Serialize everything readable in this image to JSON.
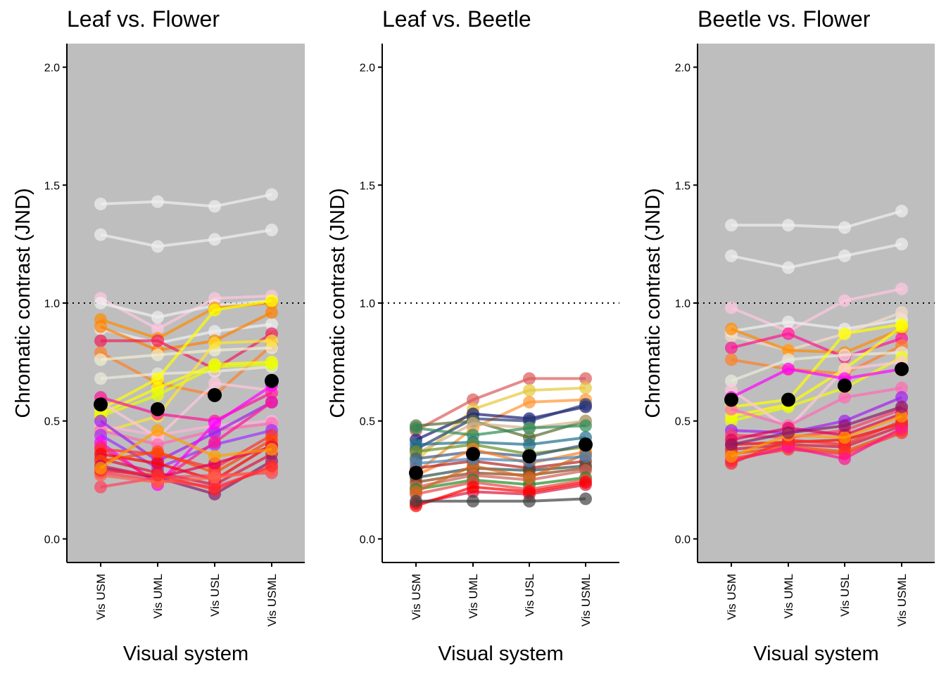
{
  "chart_data": {
    "type": "line",
    "panels": [
      {
        "title": "Leaf vs. Flower",
        "xlabel": "Visual system",
        "ylabel": "Chromatic contrast (JND)",
        "background": "#bebebe",
        "categories": [
          "Vis USM",
          "Vis UML",
          "Vis USL",
          "Vis USML"
        ],
        "ylim": [
          -0.1,
          2.1
        ],
        "yticks": [
          "0.0",
          "0.5",
          "1.0",
          "1.5",
          "2.0"
        ],
        "reference_line": 1.0,
        "mean": [
          0.57,
          0.55,
          0.61,
          0.67
        ],
        "series": [
          {
            "color": "#f0f0f0",
            "values": [
              1.42,
              1.43,
              1.41,
              1.46
            ]
          },
          {
            "color": "#f0f0f0",
            "values": [
              1.29,
              1.24,
              1.27,
              1.31
            ]
          },
          {
            "color": "#ffc8e0",
            "values": [
              1.02,
              0.89,
              1.02,
              1.03
            ]
          },
          {
            "color": "#f0f0f0",
            "values": [
              1.0,
              0.94,
              0.99,
              1.01
            ]
          },
          {
            "color": "#ff8c00",
            "values": [
              0.93,
              0.85,
              0.98,
              1.0
            ]
          },
          {
            "color": "#f0f0f0",
            "values": [
              0.89,
              0.83,
              0.88,
              0.91
            ]
          },
          {
            "color": "#ff8000",
            "values": [
              0.9,
              0.8,
              0.84,
              0.96
            ]
          },
          {
            "color": "#f01e5a",
            "values": [
              0.84,
              0.84,
              0.72,
              0.87
            ]
          },
          {
            "color": "#ff7f24",
            "values": [
              0.79,
              0.66,
              0.61,
              0.82
            ]
          },
          {
            "color": "#f0f0d2",
            "values": [
              0.76,
              0.78,
              0.8,
              0.81
            ]
          },
          {
            "color": "#ebebdc",
            "values": [
              0.68,
              0.7,
              0.71,
              0.73
            ]
          },
          {
            "color": "#ffff00",
            "values": [
              0.55,
              0.68,
              0.97,
              1.01
            ]
          },
          {
            "color": "#ffff00",
            "values": [
              0.53,
              0.64,
              0.74,
              0.75
            ]
          },
          {
            "color": "#e6ff00",
            "values": [
              0.52,
              0.61,
              0.73,
              0.74
            ]
          },
          {
            "color": "#ffe632",
            "values": [
              0.45,
              0.52,
              0.83,
              0.84
            ]
          },
          {
            "color": "#ffc8dc",
            "values": [
              0.58,
              0.43,
              0.66,
              0.63
            ]
          },
          {
            "color": "#ff1493",
            "values": [
              0.6,
              0.53,
              0.5,
              0.62
            ]
          },
          {
            "color": "#ffb4dc",
            "values": [
              0.48,
              0.44,
              0.48,
              0.5
            ]
          },
          {
            "color": "#ff69b4",
            "values": [
              0.46,
              0.4,
              0.46,
              0.49
            ]
          },
          {
            "color": "#a020f0",
            "values": [
              0.5,
              0.33,
              0.45,
              0.58
            ]
          },
          {
            "color": "#9b30ff",
            "values": [
              0.44,
              0.3,
              0.4,
              0.46
            ]
          },
          {
            "color": "#ff00ff",
            "values": [
              0.41,
              0.23,
              0.49,
              0.65
            ]
          },
          {
            "color": "#ff1493",
            "values": [
              0.39,
              0.24,
              0.41,
              0.58
            ]
          },
          {
            "color": "#ff3030",
            "values": [
              0.38,
              0.36,
              0.3,
              0.44
            ]
          },
          {
            "color": "#ff0000",
            "values": [
              0.36,
              0.32,
              0.25,
              0.4
            ]
          },
          {
            "color": "#dc143c",
            "values": [
              0.34,
              0.28,
              0.23,
              0.36
            ]
          },
          {
            "color": "#ff4500",
            "values": [
              0.33,
              0.37,
              0.28,
              0.42
            ]
          },
          {
            "color": "#e6005a",
            "values": [
              0.31,
              0.26,
              0.32,
              0.39
            ]
          },
          {
            "color": "#8b1a6b",
            "values": [
              0.3,
              0.26,
              0.19,
              0.33
            ]
          },
          {
            "color": "#ff3c64",
            "values": [
              0.28,
              0.25,
              0.22,
              0.3
            ]
          },
          {
            "color": "#ff4060",
            "values": [
              0.22,
              0.26,
              0.27,
              0.28
            ]
          },
          {
            "color": "#ff6347",
            "values": [
              0.27,
              0.24,
              0.26,
              0.29
            ]
          },
          {
            "color": "#ff2828",
            "values": [
              0.29,
              0.27,
              0.21,
              0.31
            ]
          },
          {
            "color": "#ffa000",
            "values": [
              0.3,
              0.46,
              0.35,
              0.38
            ]
          }
        ]
      },
      {
        "title": "Leaf vs. Beetle",
        "xlabel": "Visual system",
        "ylabel": "Chromatic contrast (JND)",
        "background": "#ffffff",
        "categories": [
          "Vis USM",
          "Vis UML",
          "Vis USL",
          "Vis USML"
        ],
        "ylim": [
          -0.1,
          2.1
        ],
        "yticks": [
          "0.0",
          "0.5",
          "1.0",
          "1.5",
          "2.0"
        ],
        "reference_line": 1.0,
        "mean": [
          0.28,
          0.36,
          0.35,
          0.4
        ],
        "series": [
          {
            "color": "#dc5a5a",
            "values": [
              0.46,
              0.59,
              0.68,
              0.68
            ]
          },
          {
            "color": "#e6c83c",
            "values": [
              0.33,
              0.55,
              0.63,
              0.64
            ]
          },
          {
            "color": "#ff9632",
            "values": [
              0.28,
              0.47,
              0.58,
              0.59
            ]
          },
          {
            "color": "#191970",
            "values": [
              0.42,
              0.53,
              0.51,
              0.56
            ]
          },
          {
            "color": "#283c78",
            "values": [
              0.38,
              0.51,
              0.5,
              0.57
            ]
          },
          {
            "color": "#556b2f",
            "values": [
              0.48,
              0.5,
              0.43,
              0.5
            ]
          },
          {
            "color": "#d2b48c",
            "values": [
              0.36,
              0.49,
              0.47,
              0.5
            ]
          },
          {
            "color": "#2e8b57",
            "values": [
              0.47,
              0.44,
              0.47,
              0.48
            ]
          },
          {
            "color": "#1f6f8b",
            "values": [
              0.4,
              0.41,
              0.4,
              0.43
            ]
          },
          {
            "color": "#6b8e23",
            "values": [
              0.37,
              0.4,
              0.36,
              0.39
            ]
          },
          {
            "color": "#3c5a7a",
            "values": [
              0.34,
              0.37,
              0.35,
              0.4
            ]
          },
          {
            "color": "#ff7f24",
            "values": [
              0.27,
              0.38,
              0.32,
              0.37
            ]
          },
          {
            "color": "#b22222",
            "values": [
              0.3,
              0.33,
              0.3,
              0.33
            ]
          },
          {
            "color": "#2f4f4f",
            "values": [
              0.26,
              0.3,
              0.29,
              0.31
            ]
          },
          {
            "color": "#8b4513",
            "values": [
              0.24,
              0.28,
              0.27,
              0.3
            ]
          },
          {
            "color": "#cd5c5c",
            "values": [
              0.22,
              0.27,
              0.25,
              0.29
            ]
          },
          {
            "color": "#228b22",
            "values": [
              0.21,
              0.25,
              0.23,
              0.26
            ]
          },
          {
            "color": "#e64646",
            "values": [
              0.19,
              0.24,
              0.21,
              0.25
            ]
          },
          {
            "color": "#dc143c",
            "values": [
              0.15,
              0.2,
              0.19,
              0.23
            ]
          },
          {
            "color": "#ff0000",
            "values": [
              0.14,
              0.22,
              0.2,
              0.24
            ]
          },
          {
            "color": "#d2691e",
            "values": [
              0.2,
              0.31,
              0.26,
              0.36
            ]
          },
          {
            "color": "#4682b4",
            "values": [
              0.32,
              0.34,
              0.33,
              0.35
            ]
          },
          {
            "color": "#404040",
            "values": [
              0.16,
              0.16,
              0.16,
              0.17
            ]
          }
        ]
      },
      {
        "title": "Beetle vs. Flower",
        "xlabel": "Visual system",
        "ylabel": "Chromatic contrast (JND)",
        "background": "#bebebe",
        "categories": [
          "Vis USM",
          "Vis UML",
          "Vis USL",
          "Vis USML"
        ],
        "ylim": [
          -0.1,
          2.1
        ],
        "yticks": [
          "0.0",
          "0.5",
          "1.0",
          "1.5",
          "2.0"
        ],
        "reference_line": 1.0,
        "mean": [
          0.59,
          0.59,
          0.65,
          0.72
        ],
        "series": [
          {
            "color": "#f0f0f0",
            "values": [
              1.33,
              1.33,
              1.32,
              1.39
            ]
          },
          {
            "color": "#f0f0f0",
            "values": [
              1.2,
              1.15,
              1.2,
              1.25
            ]
          },
          {
            "color": "#ffc8e0",
            "values": [
              0.98,
              0.88,
              1.01,
              1.06
            ]
          },
          {
            "color": "#f0f0f0",
            "values": [
              0.88,
              0.92,
              0.89,
              0.93
            ]
          },
          {
            "color": "#f5dcc8",
            "values": [
              0.86,
              0.8,
              0.87,
              0.96
            ]
          },
          {
            "color": "#ff8c00",
            "values": [
              0.89,
              0.8,
              0.79,
              0.89
            ]
          },
          {
            "color": "#ff1493",
            "values": [
              0.81,
              0.87,
              0.77,
              0.85
            ]
          },
          {
            "color": "#ff7f24",
            "values": [
              0.76,
              0.72,
              0.7,
              0.82
            ]
          },
          {
            "color": "#ebebdc",
            "values": [
              0.67,
              0.76,
              0.78,
              0.79
            ]
          },
          {
            "color": "#ffff00",
            "values": [
              0.56,
              0.59,
              0.87,
              0.91
            ]
          },
          {
            "color": "#ffff00",
            "values": [
              0.52,
              0.57,
              0.72,
              0.9
            ]
          },
          {
            "color": "#f0ff00",
            "values": [
              0.5,
              0.56,
              0.64,
              0.77
            ]
          },
          {
            "color": "#ffc8dc",
            "values": [
              0.63,
              0.47,
              0.72,
              0.75
            ]
          },
          {
            "color": "#ff00ff",
            "values": [
              0.6,
              0.72,
              0.68,
              0.72
            ]
          },
          {
            "color": "#ff69b4",
            "values": [
              0.55,
              0.48,
              0.6,
              0.64
            ]
          },
          {
            "color": "#a020f0",
            "values": [
              0.46,
              0.45,
              0.5,
              0.6
            ]
          },
          {
            "color": "#ff3c64",
            "values": [
              0.44,
              0.43,
              0.46,
              0.55
            ]
          },
          {
            "color": "#e6005a",
            "values": [
              0.42,
              0.47,
              0.44,
              0.53
            ]
          },
          {
            "color": "#ff0000",
            "values": [
              0.4,
              0.41,
              0.42,
              0.49
            ]
          },
          {
            "color": "#dc143c",
            "values": [
              0.38,
              0.4,
              0.39,
              0.48
            ]
          },
          {
            "color": "#ff4500",
            "values": [
              0.36,
              0.39,
              0.37,
              0.46
            ]
          },
          {
            "color": "#ff3030",
            "values": [
              0.34,
              0.38,
              0.36,
              0.45
            ]
          },
          {
            "color": "#ff1493",
            "values": [
              0.33,
              0.39,
              0.34,
              0.47
            ]
          },
          {
            "color": "#ff2828",
            "values": [
              0.32,
              0.42,
              0.4,
              0.5
            ]
          },
          {
            "color": "#ffa000",
            "values": [
              0.35,
              0.44,
              0.43,
              0.52
            ]
          },
          {
            "color": "#8b1a6b",
            "values": [
              0.4,
              0.45,
              0.48,
              0.56
            ]
          }
        ]
      }
    ]
  }
}
